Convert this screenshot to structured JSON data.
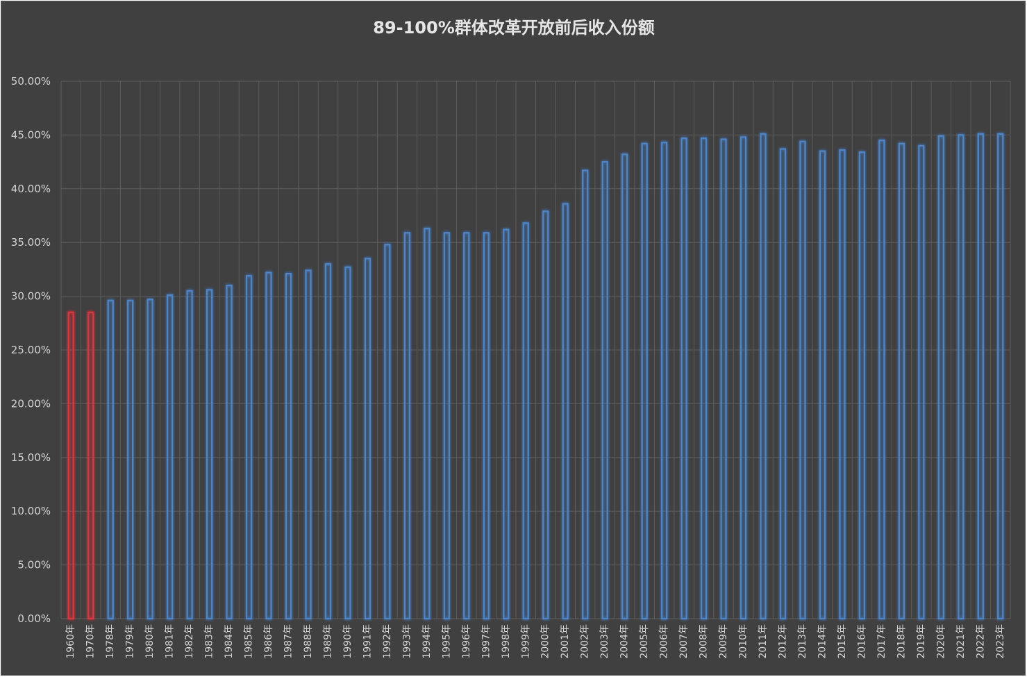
{
  "chart_data": {
    "type": "bar",
    "title": "89-100%群体改革开放前后收入份额",
    "xlabel": "",
    "ylabel": "",
    "ylim": [
      0,
      0.5
    ],
    "y_ticks": [
      "0.00%",
      "5.00%",
      "10.00%",
      "15.00%",
      "20.00%",
      "25.00%",
      "30.00%",
      "35.00%",
      "40.00%",
      "45.00%",
      "50.00%"
    ],
    "y_tick_values": [
      0,
      0.05,
      0.1,
      0.15,
      0.2,
      0.25,
      0.3,
      0.35,
      0.4,
      0.45,
      0.5
    ],
    "grid": true,
    "categories": [
      "1960年",
      "1970年",
      "1978年",
      "1979年",
      "1980年",
      "1981年",
      "1982年",
      "1983年",
      "1984年",
      "1985年",
      "1986年",
      "1987年",
      "1988年",
      "1989年",
      "1990年",
      "1991年",
      "1992年",
      "1993年",
      "1994年",
      "1995年",
      "1996年",
      "1997年",
      "1998年",
      "1999年",
      "2000年",
      "2001年",
      "2002年",
      "2003年",
      "2004年",
      "2005年",
      "2006年",
      "2007年",
      "2008年",
      "2009年",
      "2010年",
      "2011年",
      "2012年",
      "2013年",
      "2014年",
      "2015年",
      "2016年",
      "2017年",
      "2018年",
      "2019年",
      "2020年",
      "2021年",
      "2022年",
      "2023年"
    ],
    "values": [
      0.285,
      0.285,
      0.296,
      0.296,
      0.297,
      0.301,
      0.305,
      0.306,
      0.31,
      0.319,
      0.322,
      0.321,
      0.324,
      0.33,
      0.327,
      0.335,
      0.348,
      0.359,
      0.363,
      0.359,
      0.359,
      0.359,
      0.362,
      0.368,
      0.379,
      0.386,
      0.417,
      0.425,
      0.432,
      0.442,
      0.443,
      0.447,
      0.447,
      0.446,
      0.448,
      0.451,
      0.437,
      0.444,
      0.435,
      0.436,
      0.434,
      0.445,
      0.442,
      0.44,
      0.449,
      0.45,
      0.451,
      0.451
    ],
    "colors": {
      "pre_reform": "#e8333a",
      "post_reform": "#4a86d0",
      "background": "#404040",
      "grid": "#5d5d5d",
      "text": "#d4d4d4"
    },
    "pre_reform_count": 2
  }
}
